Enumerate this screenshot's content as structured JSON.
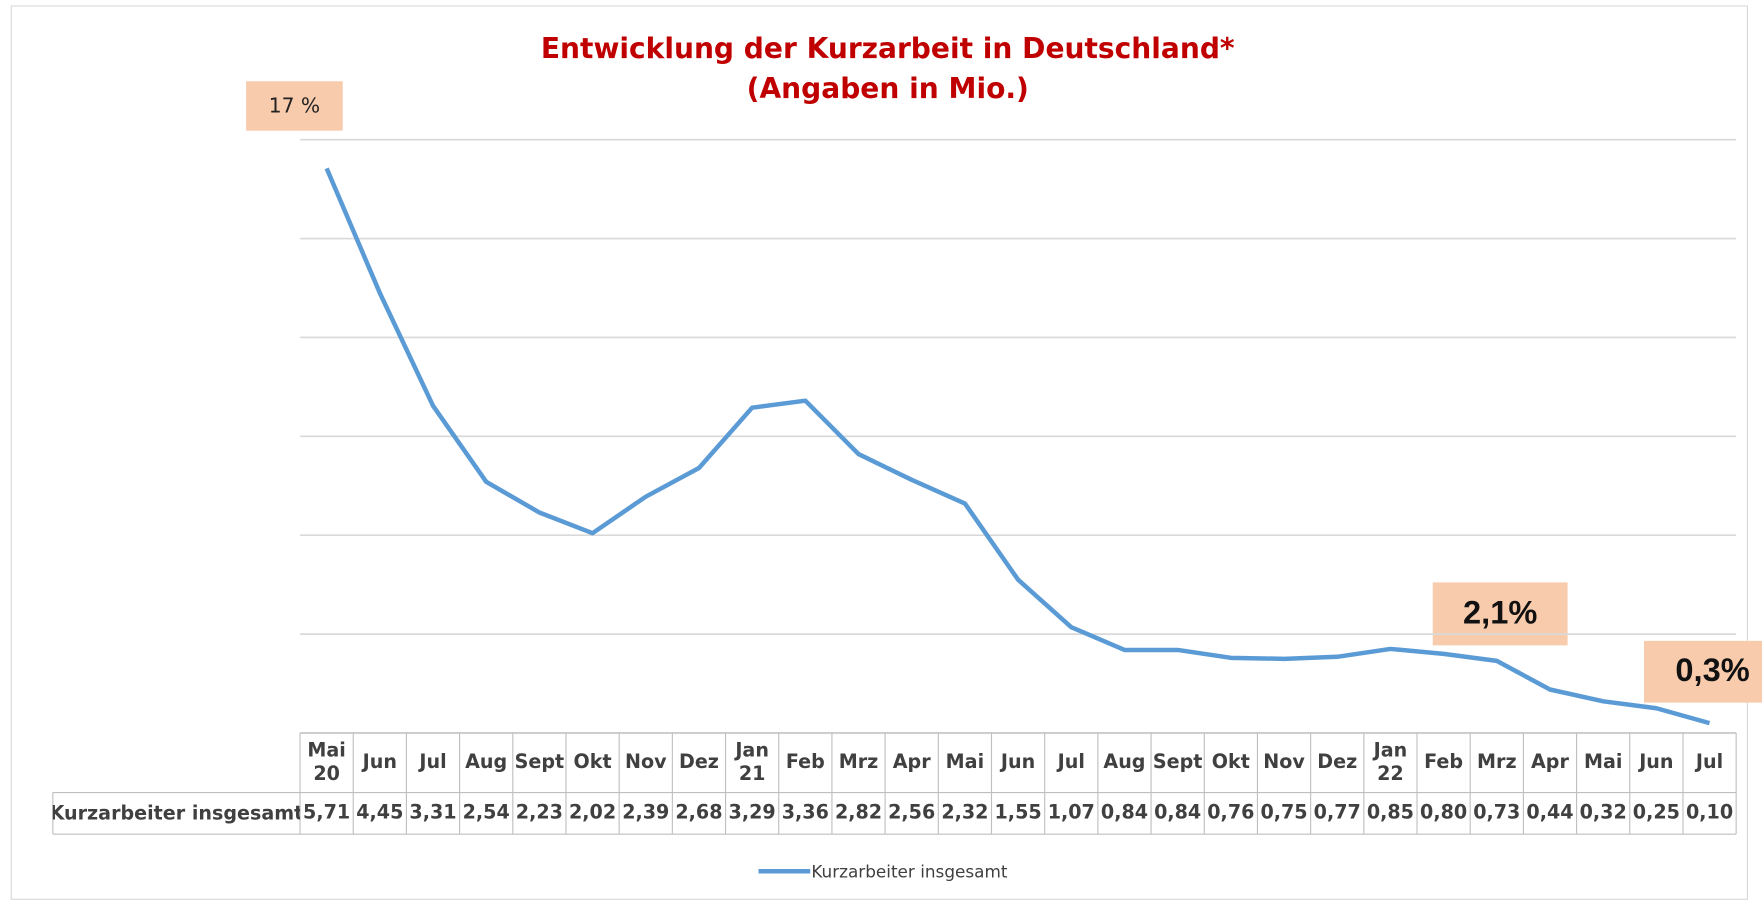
{
  "chart_data": {
    "type": "line",
    "title": "Entwicklung der Kurzarbeit in Deutschland*",
    "subtitle": "(Angaben in Mio.)",
    "categories": [
      "Mai 20",
      "Jun",
      "Jul",
      "Aug",
      "Sept",
      "Okt",
      "Nov",
      "Dez",
      "Jan 21",
      "Feb",
      "Mrz",
      "Apr",
      "Mai",
      "Jun",
      "Jul",
      "Aug",
      "Sept",
      "Okt",
      "Nov",
      "Dez",
      "Jan 22",
      "Feb",
      "Mrz",
      "Apr",
      "Mai",
      "Jun",
      "Jul"
    ],
    "series": [
      {
        "name": "Kurzarbeiter insgesamt",
        "color": "#5b9bd5",
        "values": [
          5.71,
          4.45,
          3.31,
          2.54,
          2.23,
          2.02,
          2.39,
          2.68,
          3.29,
          3.36,
          2.82,
          2.56,
          2.32,
          1.55,
          1.07,
          0.84,
          0.84,
          0.76,
          0.75,
          0.77,
          0.85,
          0.8,
          0.73,
          0.44,
          0.32,
          0.25,
          0.1
        ],
        "value_labels": [
          "5,71",
          "4,45",
          "3,31",
          "2,54",
          "2,23",
          "2,02",
          "2,39",
          "2,68",
          "3,29",
          "3,36",
          "2,82",
          "2,56",
          "2,32",
          "1,55",
          "1,07",
          "0,84",
          "0,84",
          "0,76",
          "0,75",
          "0,77",
          "0,85",
          "0,80",
          "0,73",
          "0,44",
          "0,32",
          "0,25",
          "0,10"
        ]
      }
    ],
    "ylim": [
      0,
      6
    ],
    "yticks": [
      0,
      1,
      2,
      3,
      4,
      5,
      6
    ],
    "grid": true,
    "annotations": [
      "17 %",
      "2,1%",
      "0,3%"
    ],
    "legend": "bottom"
  }
}
